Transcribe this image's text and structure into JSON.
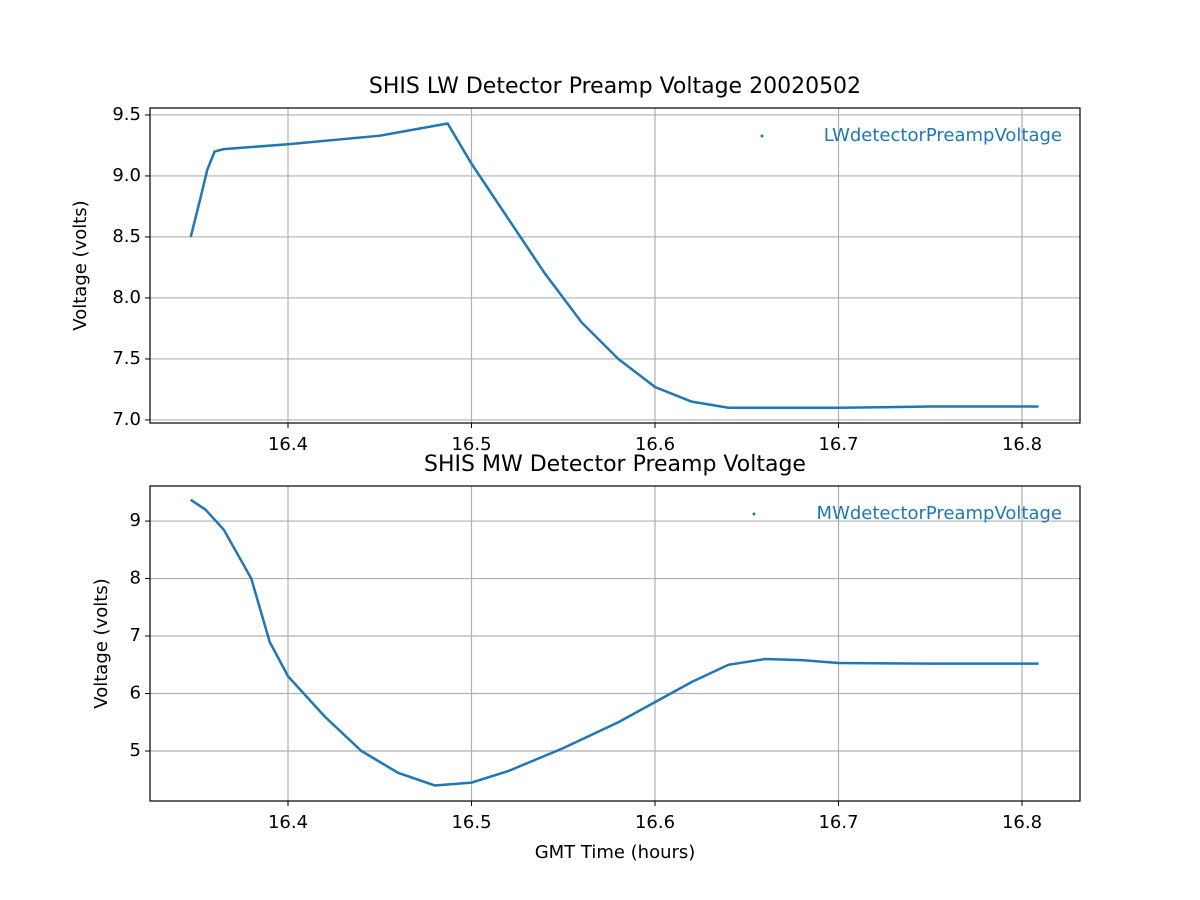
{
  "chart_data": [
    {
      "type": "line",
      "title": "SHIS LW Detector Preamp Voltage 20020502",
      "ylabel": "Voltage (volts)",
      "x": [
        16.347,
        16.352,
        16.356,
        16.36,
        16.365,
        16.4,
        16.45,
        16.487,
        16.5,
        16.52,
        16.54,
        16.56,
        16.58,
        16.6,
        16.62,
        16.64,
        16.7,
        16.75,
        16.809
      ],
      "series": [
        {
          "name": "LWdetectorPreampVoltage",
          "color": "#1f77b4",
          "values": [
            8.5,
            8.8,
            9.05,
            9.2,
            9.22,
            9.26,
            9.33,
            9.43,
            9.1,
            8.65,
            8.2,
            7.8,
            7.5,
            7.27,
            7.15,
            7.1,
            7.1,
            7.11,
            7.11
          ]
        }
      ],
      "xlim": [
        16.3248,
        16.8316
      ],
      "ylim": [
        6.975,
        9.557
      ],
      "xticks": [
        16.4,
        16.5,
        16.6,
        16.7,
        16.8
      ],
      "yticks": [
        {
          "value": 7,
          "label": "7.0"
        },
        7.5,
        {
          "value": 8,
          "label": "8.0"
        },
        8.5,
        {
          "value": 9,
          "label": "9.0"
        },
        9.5
      ],
      "grid": true,
      "legend": "upper right"
    },
    {
      "type": "line",
      "title": "SHIS MW Detector Preamp Voltage",
      "ylabel": "Voltage (volts)",
      "xlabel": "GMT Time (hours)",
      "x": [
        16.347,
        16.355,
        16.365,
        16.38,
        16.39,
        16.4,
        16.42,
        16.44,
        16.46,
        16.48,
        16.5,
        16.52,
        16.55,
        16.58,
        16.6,
        16.62,
        16.64,
        16.66,
        16.68,
        16.7,
        16.75,
        16.809
      ],
      "series": [
        {
          "name": "MWdetectorPreampVoltage",
          "color": "#1f77b4",
          "values": [
            9.37,
            9.2,
            8.85,
            8.0,
            6.9,
            6.3,
            5.6,
            5.0,
            4.62,
            4.4,
            4.45,
            4.65,
            5.05,
            5.5,
            5.85,
            6.2,
            6.5,
            6.6,
            6.58,
            6.53,
            6.52,
            6.52
          ]
        }
      ],
      "xlim": [
        16.3248,
        16.8316
      ],
      "ylim": [
        4.13,
        9.61
      ],
      "xticks": [
        16.4,
        16.5,
        16.6,
        16.7,
        16.8
      ],
      "yticks": [
        5,
        6,
        7,
        8,
        9
      ],
      "grid": true,
      "legend": "upper right"
    }
  ]
}
